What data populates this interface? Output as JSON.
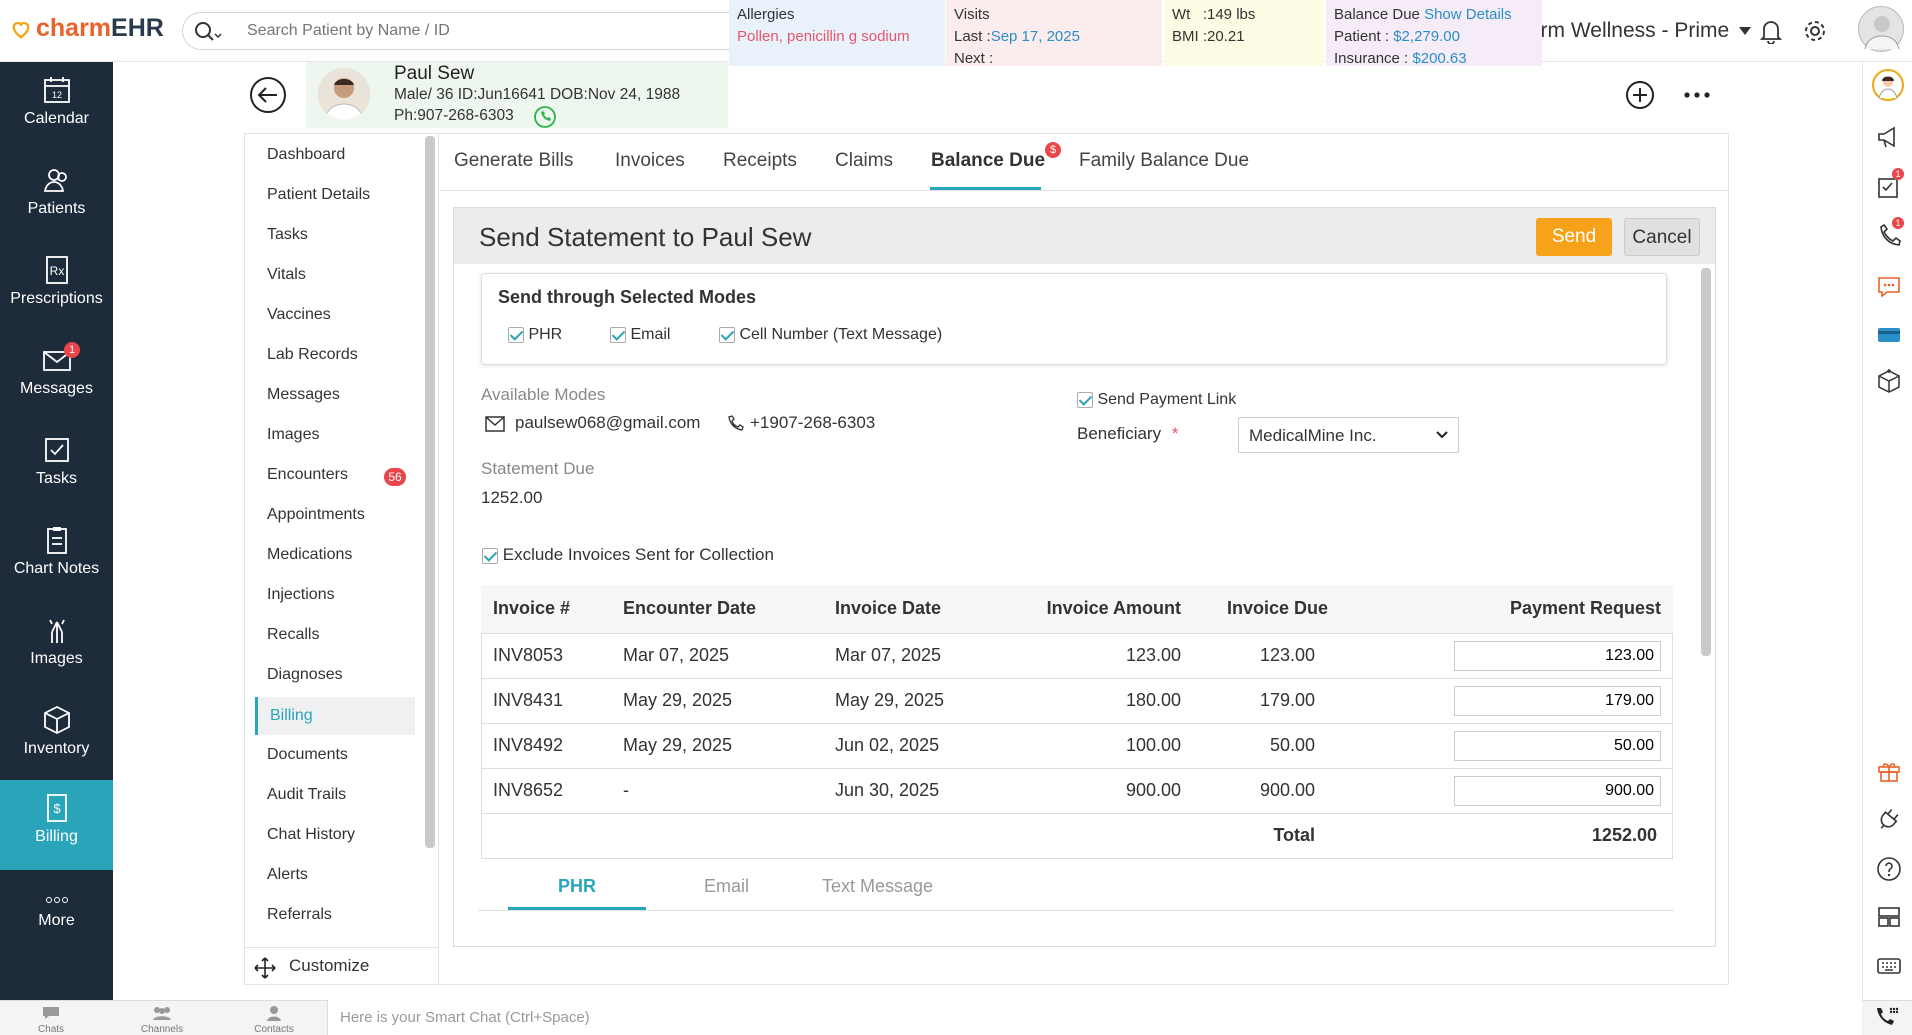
{
  "app": {
    "logo_brand": "charm",
    "logo_suffix": "EHR",
    "clinic": "Charm Wellness - Prime"
  },
  "search": {
    "placeholder": "Search Patient by Name / ID"
  },
  "nav": [
    {
      "label": "Calendar",
      "icon": "calendar-icon"
    },
    {
      "label": "Patients",
      "icon": "patients-icon"
    },
    {
      "label": "Prescriptions",
      "icon": "prescription-icon"
    },
    {
      "label": "Messages",
      "icon": "mail-icon",
      "badge": "1"
    },
    {
      "label": "Tasks",
      "icon": "tasks-icon"
    },
    {
      "label": "Chart Notes",
      "icon": "chart-notes-icon"
    },
    {
      "label": "Images",
      "icon": "xray-icon"
    },
    {
      "label": "Inventory",
      "icon": "box-icon"
    },
    {
      "label": "Billing",
      "icon": "billing-icon",
      "active": true
    },
    {
      "label": "More",
      "icon": "more-icon"
    }
  ],
  "patient": {
    "name": "Paul Sew",
    "line1": "Male/ 36 ID:Jun16641 DOB:Nov 24, 1988",
    "phone": "Ph:907-268-6303",
    "allergies_label": "Allergies",
    "allergies": "Pollen, penicillin g sodium",
    "visits_label": "Visits",
    "last_label": "Last :",
    "last_value": "Sep 17, 2025",
    "next_label": "Next :",
    "wt": "Wt   :149 lbs",
    "bmi": "BMI :20.21",
    "balance_label": "Balance Due",
    "show_details": "Show Details",
    "patient_label": "Patient :",
    "patient_value": "$2,279.00",
    "insurance_label": "Insurance :",
    "insurance_value": "$200.63"
  },
  "submenu": [
    "Dashboard",
    "Patient Details",
    "Tasks",
    "Vitals",
    "Vaccines",
    "Lab Records",
    "Messages",
    "Images",
    "Encounters",
    "Appointments",
    "Medications",
    "Injections",
    "Recalls",
    "Diagnoses",
    "Billing",
    "Documents",
    "Audit Trails",
    "Chat History",
    "Alerts",
    "Referrals"
  ],
  "submenu_encounters_badge": "56",
  "customize": "Customize",
  "tabs": [
    "Generate Bills",
    "Invoices",
    "Receipts",
    "Claims",
    "Balance Due",
    "Family Balance Due"
  ],
  "balance_badge": "$",
  "statement": {
    "title": "Send Statement to Paul Sew",
    "send": "Send",
    "cancel": "Cancel",
    "modes_title": "Send through Selected Modes",
    "mode_phr": "PHR",
    "mode_email": "Email",
    "mode_cell": "Cell Number (Text Message)",
    "available_modes": "Available Modes",
    "email": "paulsew068@gmail.com",
    "phone": "+1907-268-6303",
    "statement_due_label": "Statement Due",
    "statement_due": "1252.00",
    "send_payment_link": "Send Payment Link",
    "beneficiary_label": "Beneficiary",
    "beneficiary_value": "MedicalMine Inc.",
    "exclude": "Exclude Invoices Sent for Collection"
  },
  "table": {
    "headers": [
      "Invoice #",
      "Encounter Date",
      "Invoice Date",
      "Invoice Amount",
      "Invoice Due",
      "Payment Request"
    ],
    "rows": [
      [
        "INV8053",
        "Mar 07, 2025",
        "Mar 07, 2025",
        "123.00",
        "123.00",
        "123.00"
      ],
      [
        "INV8431",
        "May 29, 2025",
        "May 29, 2025",
        "180.00",
        "179.00",
        "179.00"
      ],
      [
        "INV8492",
        "May 29, 2025",
        "Jun 02, 2025",
        "100.00",
        "50.00",
        "50.00"
      ],
      [
        "INV8652",
        "-",
        "Jun 30, 2025",
        "900.00",
        "900.00",
        "900.00"
      ]
    ],
    "total_label": "Total",
    "total": "1252.00"
  },
  "bottom_tabs": [
    "PHR",
    "Email",
    "Text Message"
  ],
  "bottombar": {
    "chats": "Chats",
    "channels": "Channels",
    "contacts": "Contacts",
    "smart_chat": "Here is your Smart Chat (Ctrl+Space)"
  },
  "right_badges": {
    "tasks": "1",
    "calls": "1"
  },
  "colors": {
    "accent": "#2aa4b9",
    "send": "#f7a21b",
    "sidebar": "#1e2b3b",
    "badge": "#e9454a"
  }
}
